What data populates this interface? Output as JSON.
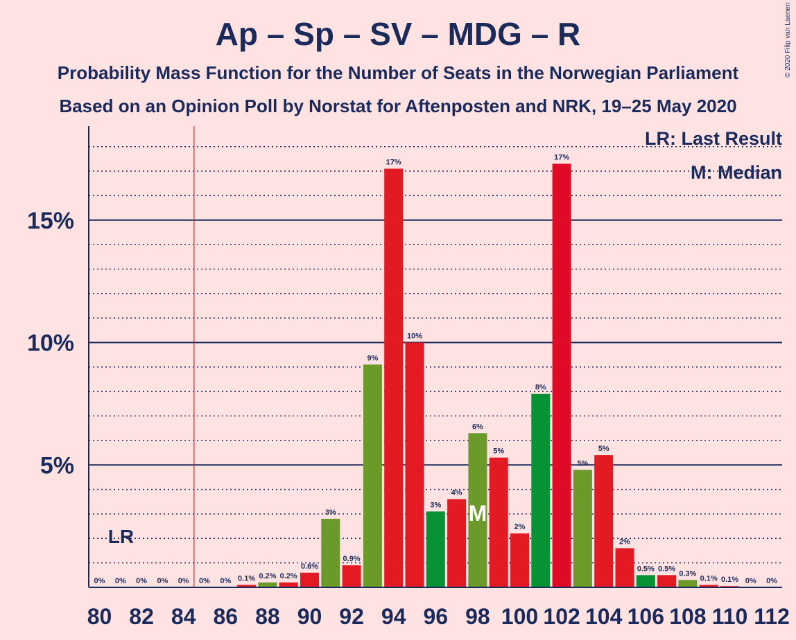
{
  "header": {
    "title": "Ap – Sp – SV – MDG – R",
    "subtitle1": "Probability Mass Function for the Number of Seats in the Norwegian Parliament",
    "subtitle2": "Based on an Opinion Poll by Norstat for Aftenposten and NRK, 19–25 May 2020",
    "copyright": "© 2020 Filip van Laenen"
  },
  "legend": {
    "last_result": "LR: Last Result",
    "median": "M: Median"
  },
  "markers": {
    "last_result_label": "LR",
    "last_result_seat": 85,
    "median_label": "M",
    "median_seat": 98
  },
  "colors": {
    "background": "#ffe2e2",
    "text": "#1a2a5a",
    "red": "#e31a23",
    "green": "#6b9a2b",
    "dark_green": "#079236",
    "crimson": "#e00a27",
    "lr_line": "#e31a23"
  },
  "chart_data": {
    "type": "bar",
    "x": [
      80,
      81,
      82,
      83,
      84,
      85,
      86,
      87,
      88,
      89,
      90,
      91,
      92,
      93,
      94,
      95,
      96,
      97,
      98,
      99,
      100,
      101,
      102,
      103,
      104,
      105,
      106,
      107,
      108,
      109,
      110,
      111,
      112
    ],
    "values": [
      0,
      0,
      0,
      0,
      0,
      0,
      0,
      0.1,
      0.2,
      0.2,
      0.6,
      2.8,
      0.9,
      9.1,
      17.1,
      10.0,
      3.1,
      3.6,
      6.3,
      5.3,
      2.2,
      7.9,
      17.3,
      4.8,
      5.4,
      1.6,
      0.5,
      0.5,
      0.3,
      0.1,
      0.05,
      0,
      0
    ],
    "labels": [
      "0%",
      "0%",
      "0%",
      "0%",
      "0%",
      "0%",
      "0%",
      "0.1%",
      "0.2%",
      "0.2%",
      "0.6%",
      "3%",
      "0.9%",
      "9%",
      "17%",
      "10%",
      "3%",
      "4%",
      "6%",
      "5%",
      "2%",
      "8%",
      "17%",
      "5%",
      "5%",
      "2%",
      "0.5%",
      "0.5%",
      "0.3%",
      "0.1%",
      "0.1%",
      "0%",
      "0%"
    ],
    "bar_colors": [
      "red",
      "red",
      "red",
      "red",
      "red",
      "red",
      "red",
      "red",
      "green",
      "red",
      "red",
      "green",
      "red",
      "green",
      "red",
      "red",
      "dark_green",
      "red",
      "green",
      "red",
      "red",
      "dark_green",
      "crimson",
      "green",
      "red",
      "red",
      "dark_green",
      "red",
      "green",
      "red",
      "red",
      "red",
      "red"
    ],
    "x_ticks": [
      80,
      82,
      84,
      86,
      88,
      90,
      92,
      94,
      96,
      98,
      100,
      102,
      104,
      106,
      108,
      110,
      112
    ],
    "x_tick_labels": [
      "80",
      "82",
      "84",
      "86",
      "88",
      "90",
      "92",
      "94",
      "96",
      "98",
      "100",
      "102",
      "104",
      "106",
      "108",
      "110",
      "112"
    ],
    "y_ticks": [
      5,
      10,
      15
    ],
    "y_tick_labels": [
      "5%",
      "10%",
      "15%"
    ],
    "ylim": [
      0,
      18.9
    ],
    "grid": true
  }
}
